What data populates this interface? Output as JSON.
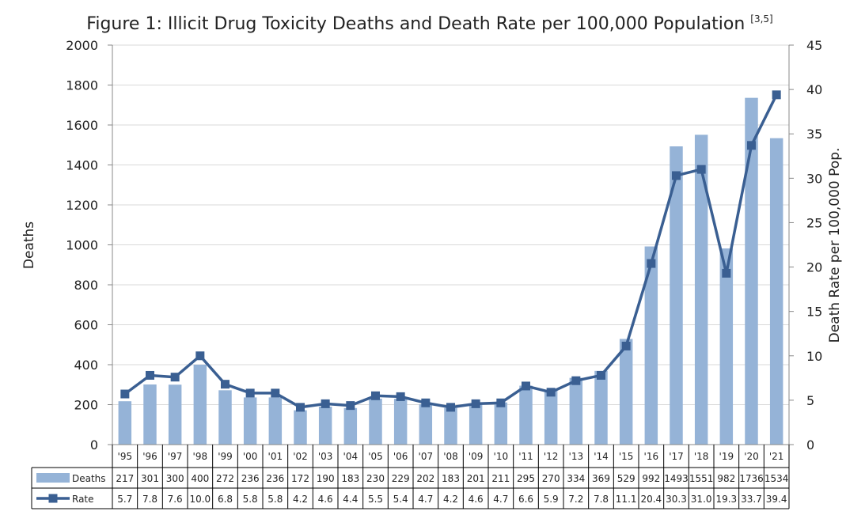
{
  "chart_data": {
    "type": "bar+line",
    "title": "Figure 1: Illicit Drug Toxicity Deaths and Death Rate per 100,000 Population",
    "title_sup": "[3,5]",
    "categories": [
      "'95",
      "'96",
      "'97",
      "'98",
      "'99",
      "'00",
      "'01",
      "'02",
      "'03",
      "'04",
      "'05",
      "'06",
      "'07",
      "'08",
      "'09",
      "'10",
      "'11",
      "'12",
      "'13",
      "'14",
      "'15",
      "'16",
      "'17",
      "'18",
      "'19",
      "'20",
      "'21"
    ],
    "series": [
      {
        "name": "Deaths",
        "type": "bar",
        "axis": "left",
        "color": "#95b3d7",
        "values": [
          217,
          301,
          300,
          400,
          272,
          236,
          236,
          172,
          190,
          183,
          230,
          229,
          202,
          183,
          201,
          211,
          295,
          270,
          334,
          369,
          529,
          992,
          1493,
          1551,
          982,
          1736,
          1534
        ],
        "labels": [
          "217",
          "301",
          "300",
          "400",
          "272",
          "236",
          "236",
          "172",
          "190",
          "183",
          "230",
          "229",
          "202",
          "183",
          "201",
          "211",
          "295",
          "270",
          "334",
          "369",
          "529",
          "992",
          "1493",
          "1551",
          "982",
          "1736",
          "1534"
        ]
      },
      {
        "name": "Rate",
        "type": "line",
        "axis": "right",
        "color": "#3a5f92",
        "values": [
          5.7,
          7.8,
          7.6,
          10.0,
          6.8,
          5.8,
          5.8,
          4.2,
          4.6,
          4.4,
          5.5,
          5.4,
          4.7,
          4.2,
          4.6,
          4.7,
          6.6,
          5.9,
          7.2,
          7.8,
          11.1,
          20.4,
          30.3,
          31.0,
          19.3,
          33.7,
          39.4
        ],
        "labels": [
          "5.7",
          "7.8",
          "7.6",
          "10.0",
          "6.8",
          "5.8",
          "5.8",
          "4.2",
          "4.6",
          "4.4",
          "5.5",
          "5.4",
          "4.7",
          "4.2",
          "4.6",
          "4.7",
          "6.6",
          "5.9",
          "7.2",
          "7.8",
          "11.1",
          "20.4",
          "30.3",
          "31.0",
          "19.3",
          "33.7",
          "39.4"
        ]
      }
    ],
    "ylabel": "Deaths",
    "ylim": [
      0,
      2000
    ],
    "yticks": [
      0,
      200,
      400,
      600,
      800,
      1000,
      1200,
      1400,
      1600,
      1800,
      2000
    ],
    "y2label": "Death Rate per 100,000 Pop.",
    "y2lim": [
      0,
      45
    ],
    "y2ticks": [
      0,
      5,
      10,
      15,
      20,
      25,
      30,
      35,
      40,
      45
    ],
    "grid": true,
    "legend": "data-table-bottom"
  }
}
